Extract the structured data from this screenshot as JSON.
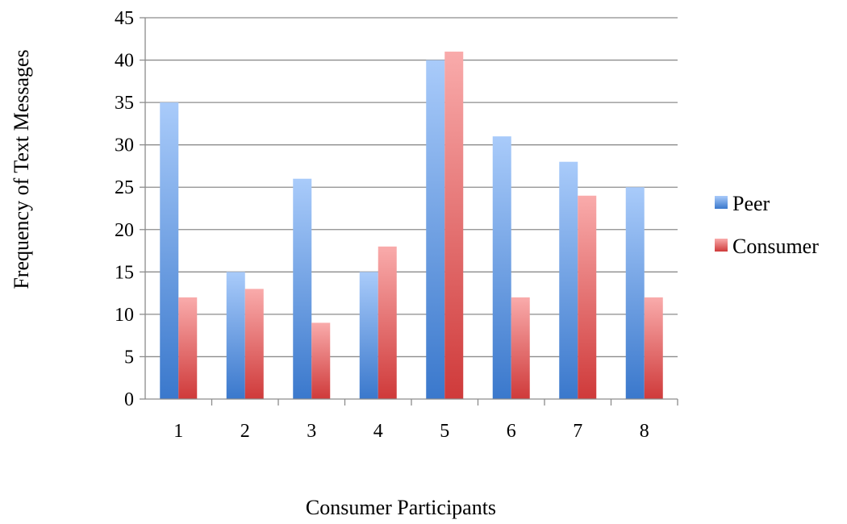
{
  "chart_data": {
    "type": "bar",
    "title": "",
    "xlabel": "Consumer Participants",
    "ylabel": "Frequency of Text Messages",
    "categories": [
      "1",
      "2",
      "3",
      "4",
      "5",
      "6",
      "7",
      "8"
    ],
    "series": [
      {
        "name": "Peer",
        "values": [
          35,
          15,
          26,
          15,
          40,
          31,
          28,
          25
        ],
        "color_top": "#a9cbfa",
        "color_bottom": "#3a78cc"
      },
      {
        "name": "Consumer",
        "values": [
          12,
          13,
          9,
          18,
          41,
          12,
          24,
          12
        ],
        "color_top": "#f9abab",
        "color_bottom": "#cf3a3a"
      }
    ],
    "ylim": [
      0,
      45
    ],
    "yticks": [
      "0",
      "5",
      "10",
      "15",
      "20",
      "25",
      "30",
      "35",
      "40",
      "45"
    ],
    "grid": true,
    "legend": "right"
  }
}
